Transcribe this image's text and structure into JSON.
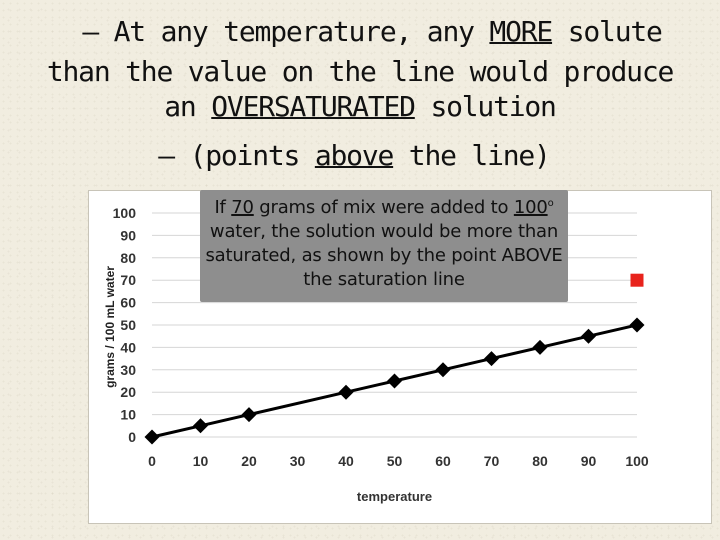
{
  "slide": {
    "line1": {
      "pre": "– At any temperature, any ",
      "emph": "MORE",
      "post": " solute"
    },
    "line2": "than the value on the line would produce",
    "line3": {
      "pre": "an ",
      "emph": "OVERSATURATED",
      "post": " solution"
    },
    "line4": {
      "pre": "– (points ",
      "emph": "above",
      "post": " the line)"
    }
  },
  "callout": {
    "pre": "If ",
    "num1": "70",
    "mid1": " grams of mix were added to ",
    "num2": "100",
    "deg": "o",
    "rest": " water, the solution would be more than saturated, as shown by the point ABOVE the saturation line"
  },
  "chart_data": {
    "type": "line",
    "x": [
      0,
      10,
      20,
      40,
      50,
      60,
      70,
      80,
      90,
      100
    ],
    "series": [
      {
        "name": "saturation",
        "values": [
          0,
          5,
          10,
          20,
          25,
          30,
          35,
          40,
          45,
          50
        ],
        "color": "#000000",
        "marker": "diamond"
      }
    ],
    "highlight_point": {
      "x": 100,
      "y": 70,
      "color": "#e8231c",
      "marker": "square"
    },
    "xticks": [
      0,
      10,
      20,
      30,
      40,
      50,
      60,
      70,
      80,
      90,
      100
    ],
    "yticks": [
      0,
      10,
      20,
      30,
      40,
      50,
      60,
      70,
      80,
      90,
      100
    ],
    "xlim": [
      0,
      100
    ],
    "ylim": [
      0,
      100
    ],
    "xlabel": "temperature",
    "ylabel": "grams / 100 mL water",
    "grid": true
  }
}
